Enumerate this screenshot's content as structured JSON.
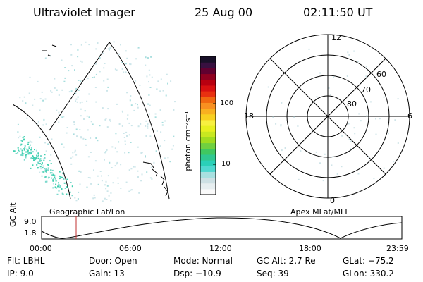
{
  "header": {
    "instrument": "Ultraviolet Imager",
    "date": "25 Aug 00",
    "time": "02:11:50 UT"
  },
  "colorbar": {
    "label": "photon cm⁻²s⁻¹",
    "ticks": [
      "100",
      "10"
    ],
    "colors": [
      "#fafafa",
      "#e6eef0",
      "#cde0e4",
      "#a8e0e0",
      "#50d8d0",
      "#2ad0b8",
      "#30c890",
      "#40c860",
      "#70d040",
      "#a0dc20",
      "#c8e820",
      "#e8f020",
      "#f8f040",
      "#f8d020",
      "#f8b020",
      "#f89020",
      "#f06810",
      "#e83010",
      "#d81010",
      "#b80010",
      "#900020",
      "#600030",
      "#381040",
      "#181028"
    ]
  },
  "left_panel": {
    "caption": "Geographic Lat/Lon"
  },
  "right_panel": {
    "caption": "Apex MLat/MLT",
    "mlt_labels": {
      "top": "12",
      "left": "18",
      "right": "6",
      "bottom": "0"
    },
    "lat_labels": [
      "60",
      "70",
      "80"
    ]
  },
  "altitude_plot": {
    "ylabel": "GC Alt",
    "yticks": [
      "9.0",
      "1.8"
    ],
    "xticks": [
      "00:00",
      "06:00",
      "12:00",
      "18:00",
      "23:59"
    ],
    "marker_color": "#c03030"
  },
  "info": {
    "flt": "Flt: LBHL",
    "ip": "IP:  9.0",
    "door": "Door: Open",
    "gain": "Gain: 13",
    "mode": "Mode: Normal",
    "dsp": "Dsp:  −10.9",
    "gcalt": "GC Alt: 2.7 Re",
    "seq": "Seq: 39",
    "glat": "GLat: −75.2",
    "glon": "GLon: 330.2"
  }
}
